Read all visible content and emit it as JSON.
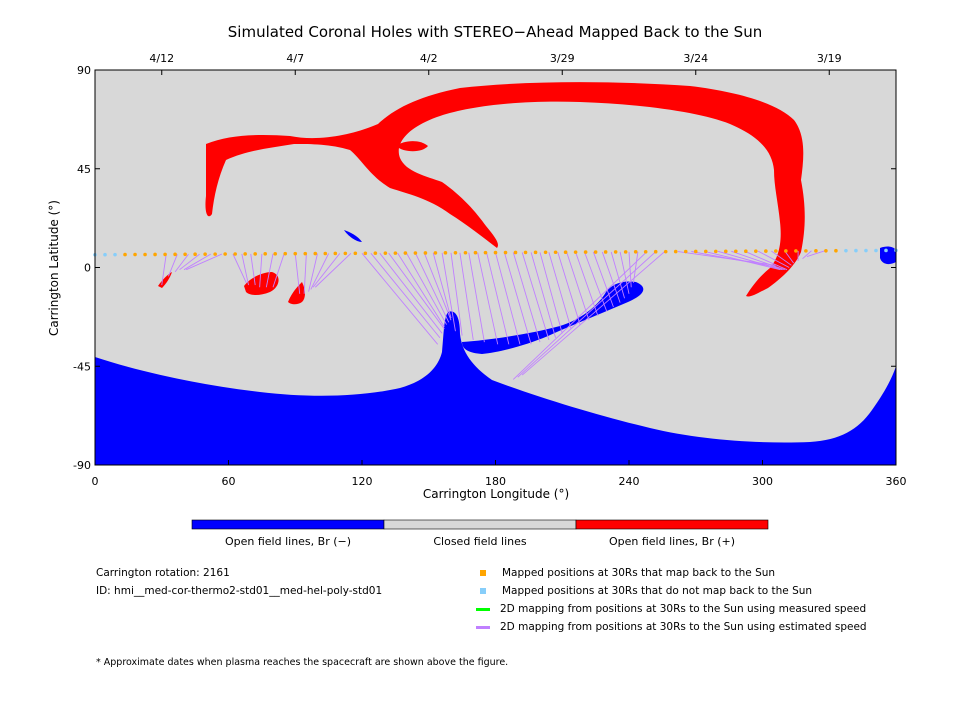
{
  "chart_data": {
    "type": "map",
    "title": "Simulated Coronal Holes with STEREO−Ahead Mapped Back to the Sun",
    "xlabel": "Carrington Longitude (°)",
    "ylabel": "Carrington Latitude (°)",
    "xlim": [
      0,
      360
    ],
    "ylim": [
      -90,
      90
    ],
    "x_ticks": [
      0,
      60,
      120,
      180,
      240,
      300,
      360
    ],
    "y_ticks": [
      -90,
      -45,
      0,
      45,
      90
    ],
    "top_axis_dates": [
      {
        "label": "4/12",
        "lon": 30
      },
      {
        "label": "4/7",
        "lon": 90
      },
      {
        "label": "4/2",
        "lon": 150
      },
      {
        "label": "3/29",
        "lon": 210
      },
      {
        "label": "3/24",
        "lon": 270
      },
      {
        "label": "3/19",
        "lon": 330
      }
    ],
    "colors": {
      "closed": "#d8d8d8",
      "open_negative": "#0000ff",
      "open_positive": "#ff0000",
      "mapped": "#ffa500",
      "unmapped": "#87cefa",
      "measured_speed": "#00ff00",
      "estimated_speed": "#c080ff"
    },
    "colorbar_labels": [
      "Open field lines, Br (−)",
      "Closed field lines",
      "Open field lines, Br (+)"
    ],
    "mapped_points": {
      "spacing_deg": 4.5,
      "lat_start": 5.8,
      "lat_end": 7.8,
      "unmapped_lon_ranges": [
        [
          0,
          12
        ],
        [
          335,
          360
        ]
      ]
    },
    "mapping_lines": [
      {
        "from": 32,
        "to": [
          30,
          -8
        ]
      },
      {
        "from": 37,
        "to": [
          33,
          -4
        ]
      },
      {
        "from": 42,
        "to": [
          36,
          -2
        ]
      },
      {
        "from": 47,
        "to": [
          38,
          -1
        ]
      },
      {
        "from": 52,
        "to": [
          40,
          -1
        ]
      },
      {
        "from": 57,
        "to": [
          41,
          -1
        ]
      },
      {
        "from": 62,
        "to": [
          68,
          -7
        ]
      },
      {
        "from": 66,
        "to": [
          69,
          -8
        ]
      },
      {
        "from": 70,
        "to": [
          72,
          -8
        ]
      },
      {
        "from": 75,
        "to": [
          74,
          -9
        ]
      },
      {
        "from": 80,
        "to": [
          77,
          -9
        ]
      },
      {
        "from": 85,
        "to": [
          80,
          -9
        ]
      },
      {
        "from": 90,
        "to": [
          92,
          -12
        ]
      },
      {
        "from": 95,
        "to": [
          94,
          -12
        ]
      },
      {
        "from": 100,
        "to": [
          96,
          -11
        ]
      },
      {
        "from": 105,
        "to": [
          97,
          -10
        ]
      },
      {
        "from": 110,
        "to": [
          98,
          -9
        ]
      },
      {
        "from": 115,
        "to": [
          99,
          -9
        ]
      },
      {
        "from": 120,
        "to": [
          154,
          -35
        ]
      },
      {
        "from": 124,
        "to": [
          155,
          -32
        ]
      },
      {
        "from": 128,
        "to": [
          156,
          -30
        ]
      },
      {
        "from": 132,
        "to": [
          157,
          -28
        ]
      },
      {
        "from": 136,
        "to": [
          157,
          -27
        ]
      },
      {
        "from": 140,
        "to": [
          158,
          -26
        ]
      },
      {
        "from": 144,
        "to": [
          159,
          -25
        ]
      },
      {
        "from": 148,
        "to": [
          160,
          -24
        ]
      },
      {
        "from": 152,
        "to": [
          160,
          -23
        ]
      },
      {
        "from": 156,
        "to": [
          162,
          -29
        ]
      },
      {
        "from": 160,
        "to": [
          165,
          -31
        ]
      },
      {
        "from": 164,
        "to": [
          170,
          -33
        ]
      },
      {
        "from": 168,
        "to": [
          175,
          -34
        ]
      },
      {
        "from": 172,
        "to": [
          181,
          -35
        ]
      },
      {
        "from": 176,
        "to": [
          186,
          -35
        ]
      },
      {
        "from": 180,
        "to": [
          191,
          -35
        ]
      },
      {
        "from": 184,
        "to": [
          196,
          -35
        ]
      },
      {
        "from": 188,
        "to": [
          200,
          -34
        ]
      },
      {
        "from": 192,
        "to": [
          204,
          -33
        ]
      },
      {
        "from": 196,
        "to": [
          207,
          -32
        ]
      },
      {
        "from": 200,
        "to": [
          210,
          -30
        ]
      },
      {
        "from": 204,
        "to": [
          214,
          -28
        ]
      },
      {
        "from": 208,
        "to": [
          218,
          -26
        ]
      },
      {
        "from": 212,
        "to": [
          222,
          -24
        ]
      },
      {
        "from": 216,
        "to": [
          226,
          -22
        ]
      },
      {
        "from": 220,
        "to": [
          230,
          -20
        ]
      },
      {
        "from": 224,
        "to": [
          233,
          -18
        ]
      },
      {
        "from": 228,
        "to": [
          236,
          -16
        ]
      },
      {
        "from": 232,
        "to": [
          238,
          -14
        ]
      },
      {
        "from": 236,
        "to": [
          240,
          -12
        ]
      },
      {
        "from": 240,
        "to": [
          241,
          -9
        ]
      },
      {
        "from": 244,
        "to": [
          242,
          -7
        ]
      },
      {
        "from": 248,
        "to": [
          188,
          -51
        ]
      },
      {
        "from": 252,
        "to": [
          190,
          -50
        ]
      },
      {
        "from": 256,
        "to": [
          192,
          -49
        ]
      },
      {
        "from": 262,
        "to": [
          306,
          1
        ]
      },
      {
        "from": 268,
        "to": [
          307,
          0
        ]
      },
      {
        "from": 274,
        "to": [
          308,
          -1
        ]
      },
      {
        "from": 280,
        "to": [
          309,
          -1
        ]
      },
      {
        "from": 286,
        "to": [
          310,
          -1
        ]
      },
      {
        "from": 292,
        "to": [
          311,
          -1
        ]
      },
      {
        "from": 298,
        "to": [
          312,
          0
        ]
      },
      {
        "from": 304,
        "to": [
          313,
          1
        ]
      },
      {
        "from": 310,
        "to": [
          314,
          2
        ]
      },
      {
        "from": 316,
        "to": [
          316,
          3
        ]
      },
      {
        "from": 322,
        "to": [
          318,
          4
        ]
      },
      {
        "from": 328,
        "to": [
          320,
          5
        ]
      }
    ]
  },
  "info": {
    "rotation": "Carrington rotation: 2161",
    "id": "ID: hmi__med-cor-thermo2-std01__med-hel-poly-std01",
    "footnote": "* Approximate dates when plasma reaches the spacecraft are shown above the figure."
  },
  "legend": [
    {
      "label": "Mapped positions at 30Rs that map back to the Sun",
      "type": "square",
      "color": "#ffa500"
    },
    {
      "label": "Mapped positions at 30Rs that do not map back to the Sun",
      "type": "square",
      "color": "#87cefa"
    },
    {
      "label": "2D mapping from positions at 30Rs to the Sun using measured speed",
      "type": "line",
      "color": "#00ff00"
    },
    {
      "label": "2D mapping from positions at 30Rs to the Sun using estimated speed",
      "type": "line",
      "color": "#c080ff"
    }
  ]
}
